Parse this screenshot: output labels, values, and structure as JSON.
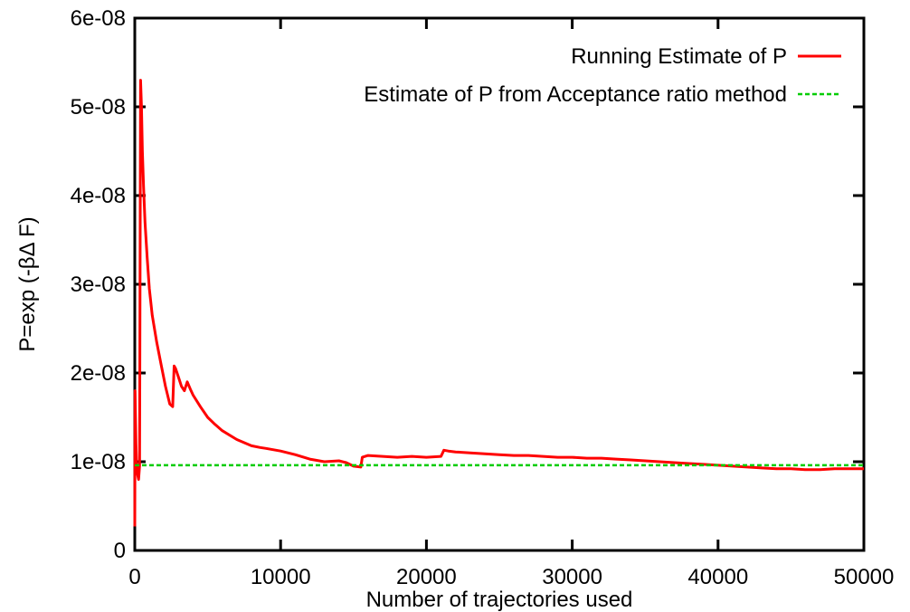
{
  "chart_data": {
    "type": "line",
    "title": "",
    "xlabel": "Number of trajectories used",
    "ylabel": "P=exp (-βΔ F)",
    "xlim": [
      0,
      50000
    ],
    "ylim": [
      0,
      6e-08
    ],
    "x_ticks": [
      0,
      10000,
      20000,
      30000,
      40000,
      50000
    ],
    "x_tick_labels": [
      "0",
      "10000",
      "20000",
      "30000",
      "40000",
      "50000"
    ],
    "y_ticks": [
      0,
      1e-08,
      2e-08,
      3e-08,
      4e-08,
      5e-08,
      6e-08
    ],
    "y_tick_labels": [
      "0",
      "1e-08",
      "2e-08",
      "3e-08",
      "4e-08",
      "5e-08",
      "6e-08"
    ],
    "grid": false,
    "legend_position": "top-right",
    "series": [
      {
        "name": "Running Estimate of P",
        "color": "#ff0000",
        "style": "solid",
        "x": [
          0,
          20,
          50,
          80,
          120,
          160,
          200,
          260,
          330,
          400,
          460,
          520,
          600,
          700,
          850,
          1000,
          1200,
          1500,
          1800,
          2100,
          2400,
          2600,
          2700,
          2800,
          3000,
          3200,
          3400,
          3600,
          3800,
          4000,
          4500,
          5000,
          5500,
          6000,
          7000,
          8000,
          8600,
          9000,
          10000,
          11000,
          12000,
          13000,
          14000,
          14500,
          15000,
          15500,
          15600,
          16000,
          17000,
          18000,
          19000,
          20000,
          21000,
          21200,
          21500,
          22000,
          23000,
          24000,
          25000,
          26000,
          27000,
          28000,
          29000,
          30000,
          31000,
          32000,
          33000,
          34000,
          35000,
          36000,
          37000,
          38000,
          39000,
          40000,
          41000,
          42000,
          43000,
          44000,
          45000,
          46000,
          47000,
          48000,
          49000,
          50000
        ],
        "y": [
          2.7e-09,
          1.8e-08,
          1.5e-08,
          1.2e-08,
          1e-08,
          9e-09,
          8.5e-09,
          8e-09,
          9.5e-09,
          5.3e-08,
          5e-08,
          4.5e-08,
          4.1e-08,
          3.7e-08,
          3.3e-08,
          2.95e-08,
          2.65e-08,
          2.35e-08,
          2.1e-08,
          1.85e-08,
          1.65e-08,
          1.62e-08,
          2.08e-08,
          2.05e-08,
          1.95e-08,
          1.85e-08,
          1.8e-08,
          1.9e-08,
          1.82e-08,
          1.75e-08,
          1.62e-08,
          1.5e-08,
          1.42e-08,
          1.35e-08,
          1.25e-08,
          1.18e-08,
          1.16e-08,
          1.15e-08,
          1.12e-08,
          1.08e-08,
          1.03e-08,
          1e-08,
          1.01e-08,
          9.9e-09,
          9.5e-09,
          9.4e-09,
          1.05e-08,
          1.07e-08,
          1.06e-08,
          1.05e-08,
          1.06e-08,
          1.05e-08,
          1.06e-08,
          1.13e-08,
          1.12e-08,
          1.11e-08,
          1.1e-08,
          1.09e-08,
          1.08e-08,
          1.07e-08,
          1.07e-08,
          1.06e-08,
          1.05e-08,
          1.05e-08,
          1.04e-08,
          1.04e-08,
          1.03e-08,
          1.02e-08,
          1.01e-08,
          1e-08,
          9.9e-09,
          9.8e-09,
          9.7e-09,
          9.6e-09,
          9.5e-09,
          9.4e-09,
          9.3e-09,
          9.2e-09,
          9.2e-09,
          9.1e-09,
          9.1e-09,
          9.2e-09,
          9.2e-09,
          9.2e-09
        ]
      },
      {
        "name": "Estimate of P from Acceptance ratio method",
        "color": "#00cc00",
        "style": "dashed",
        "x": [
          0,
          50000
        ],
        "y": [
          9.6e-09,
          9.6e-09
        ]
      }
    ]
  }
}
